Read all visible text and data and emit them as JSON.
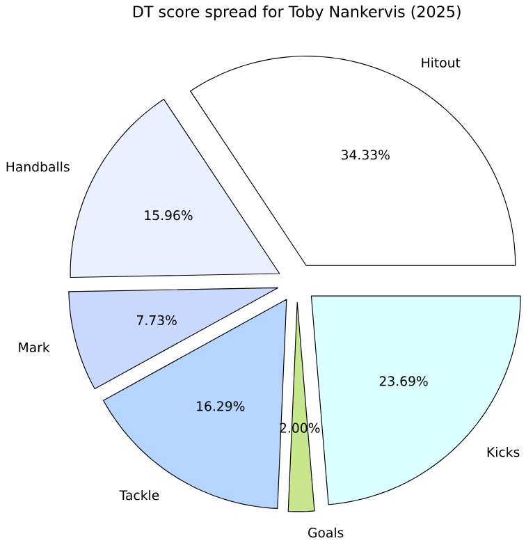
{
  "chart_data": {
    "type": "pie",
    "title": "DT score spread for Toby Nankervis (2025)",
    "categories": [
      "Hitout",
      "Handballs",
      "Mark",
      "Tackle",
      "Goals",
      "Kicks"
    ],
    "values": [
      34.33,
      15.96,
      7.73,
      16.29,
      2.0,
      23.69
    ],
    "value_labels": [
      "34.33%",
      "15.96%",
      "7.73%",
      "16.29%",
      "2.00%",
      "23.69%"
    ],
    "colors": [
      "#ffffff",
      "#eaf0ff",
      "#c8d8ff",
      "#b5d5ff",
      "#c8e68c",
      "#dcffff"
    ]
  }
}
